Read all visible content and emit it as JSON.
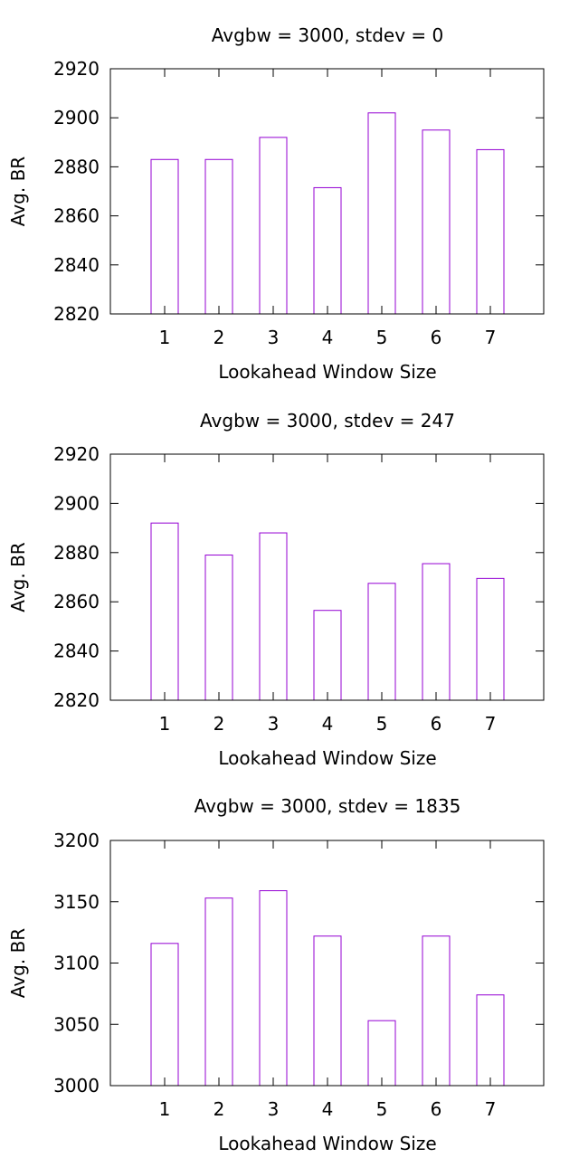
{
  "chart_data": [
    {
      "type": "bar",
      "title": "Avgbw = 3000, stdev = 0",
      "xlabel": "Lookahead Window Size",
      "ylabel": "Avg. BR",
      "categories": [
        "1",
        "2",
        "3",
        "4",
        "5",
        "6",
        "7"
      ],
      "values": [
        2883,
        2883,
        2892,
        2871.5,
        2902,
        2895,
        2887
      ],
      "ylim": [
        2820,
        2920
      ],
      "yticks": [
        2820,
        2840,
        2860,
        2880,
        2900,
        2920
      ],
      "bar_color": "#9400d3",
      "grid": false
    },
    {
      "type": "bar",
      "title": "Avgbw = 3000, stdev = 247",
      "xlabel": "Lookahead Window Size",
      "ylabel": "Avg. BR",
      "categories": [
        "1",
        "2",
        "3",
        "4",
        "5",
        "6",
        "7"
      ],
      "values": [
        2892,
        2879,
        2888,
        2856.5,
        2867.5,
        2875.5,
        2869.5
      ],
      "ylim": [
        2820,
        2920
      ],
      "yticks": [
        2820,
        2840,
        2860,
        2880,
        2900,
        2920
      ],
      "bar_color": "#9400d3",
      "grid": false
    },
    {
      "type": "bar",
      "title": "Avgbw = 3000, stdev = 1835",
      "xlabel": "Lookahead Window Size",
      "ylabel": "Avg. BR",
      "categories": [
        "1",
        "2",
        "3",
        "4",
        "5",
        "6",
        "7"
      ],
      "values": [
        3116,
        3153,
        3159,
        3122,
        3053,
        3122,
        3074
      ],
      "ylim": [
        3000,
        3200
      ],
      "yticks": [
        3000,
        3050,
        3100,
        3150,
        3200
      ],
      "bar_color": "#9400d3",
      "grid": false
    }
  ]
}
